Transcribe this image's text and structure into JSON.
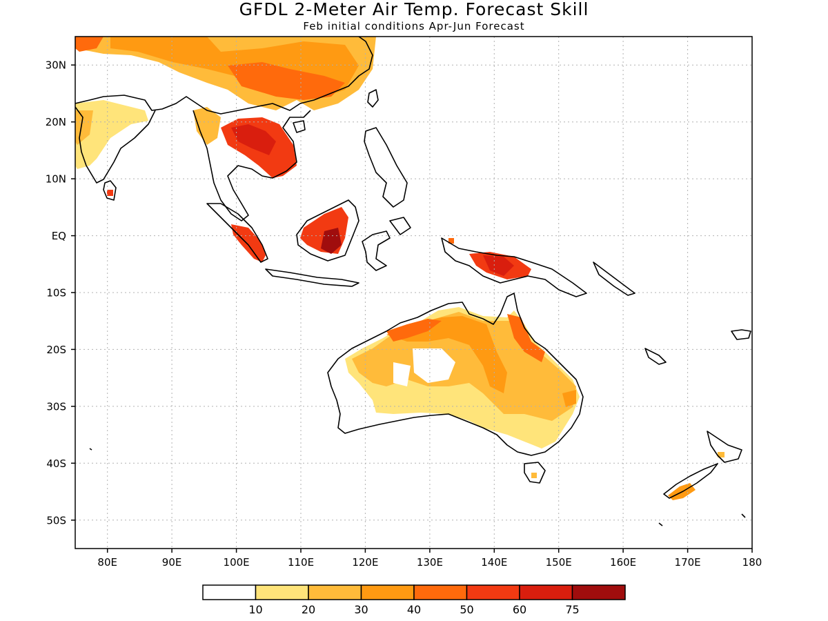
{
  "title": "GFDL 2-Meter Air Temp. Forecast Skill",
  "subtitle": "Feb initial conditions  Apr-Jun Forecast",
  "map": {
    "lon_range": [
      75,
      180
    ],
    "lat_range": [
      -55,
      35
    ],
    "lon_ticks": [
      {
        "value": 80,
        "label": "80E"
      },
      {
        "value": 90,
        "label": "90E"
      },
      {
        "value": 100,
        "label": "100E"
      },
      {
        "value": 110,
        "label": "110E"
      },
      {
        "value": 120,
        "label": "120E"
      },
      {
        "value": 130,
        "label": "130E"
      },
      {
        "value": 140,
        "label": "140E"
      },
      {
        "value": 150,
        "label": "150E"
      },
      {
        "value": 160,
        "label": "160E"
      },
      {
        "value": 170,
        "label": "170E"
      },
      {
        "value": 180,
        "label": "180"
      }
    ],
    "lat_ticks": [
      {
        "value": 30,
        "label": "30N"
      },
      {
        "value": 20,
        "label": "20N"
      },
      {
        "value": 10,
        "label": "10N"
      },
      {
        "value": 0,
        "label": "EQ"
      },
      {
        "value": -10,
        "label": "10S"
      },
      {
        "value": -20,
        "label": "20S"
      },
      {
        "value": -30,
        "label": "30S"
      },
      {
        "value": -40,
        "label": "40S"
      },
      {
        "value": -50,
        "label": "50S"
      }
    ],
    "grid": true
  },
  "colorbar": {
    "colors": [
      "#ffffff",
      "#ffe47a",
      "#ffbb3a",
      "#ff9a12",
      "#ff6a0c",
      "#f23a12",
      "#d91e0e",
      "#a00d0d"
    ],
    "labels": [
      "10",
      "20",
      "30",
      "40",
      "50",
      "60",
      "75"
    ]
  }
}
